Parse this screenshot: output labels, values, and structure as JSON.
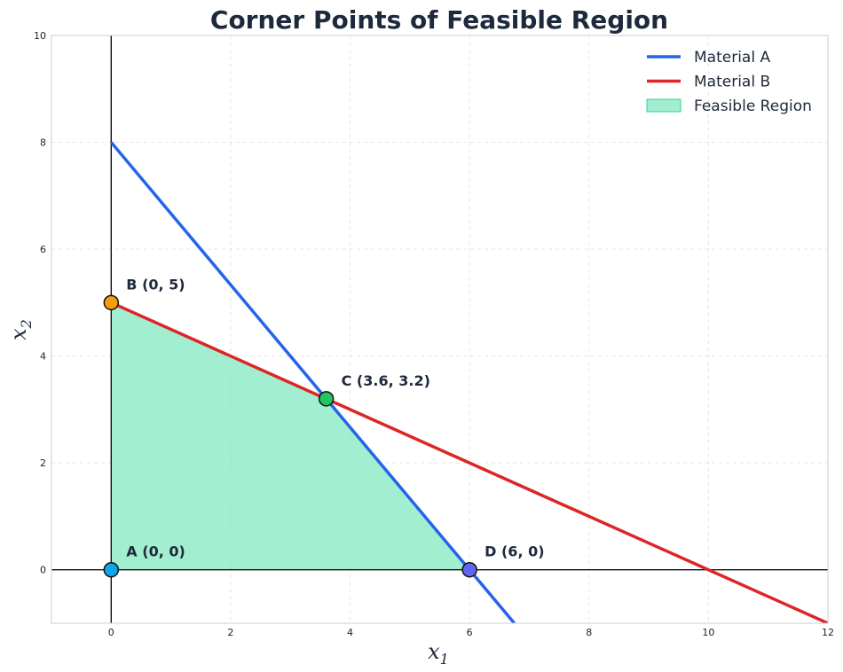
{
  "chart_data": {
    "type": "line",
    "title": "Corner Points of Feasible Region",
    "xlabel": "x",
    "xlabel_sub": "1",
    "ylabel": "x",
    "ylabel_sub": "2",
    "xlim": [
      -1,
      12
    ],
    "ylim": [
      -1,
      10
    ],
    "xticks": [
      0,
      2,
      4,
      6,
      8,
      10,
      12
    ],
    "yticks": [
      0,
      2,
      4,
      6,
      8,
      10
    ],
    "grid": true,
    "legend_position": "top-right",
    "series": [
      {
        "name": "Material A",
        "color": "#2563eb",
        "x": [
          0,
          6.75
        ],
        "y": [
          8,
          -1
        ]
      },
      {
        "name": "Material B",
        "color": "#dc2626",
        "x": [
          0,
          12
        ],
        "y": [
          5,
          -1
        ]
      }
    ],
    "feasible_region": {
      "name": "Feasible Region",
      "color": "#6ee7b7",
      "vertices": [
        [
          0,
          0
        ],
        [
          0,
          5
        ],
        [
          3.6,
          3.2
        ],
        [
          6,
          0
        ]
      ]
    },
    "points": [
      {
        "label": "A (0, 0)",
        "x": 0,
        "y": 0,
        "color": "#0ea5e9"
      },
      {
        "label": "B (0, 5)",
        "x": 0,
        "y": 5,
        "color": "#f59e0b"
      },
      {
        "label": "C (3.6, 3.2)",
        "x": 3.6,
        "y": 3.2,
        "color": "#22c55e"
      },
      {
        "label": "D (6, 0)",
        "x": 6,
        "y": 0,
        "color": "#6366f1"
      }
    ]
  }
}
